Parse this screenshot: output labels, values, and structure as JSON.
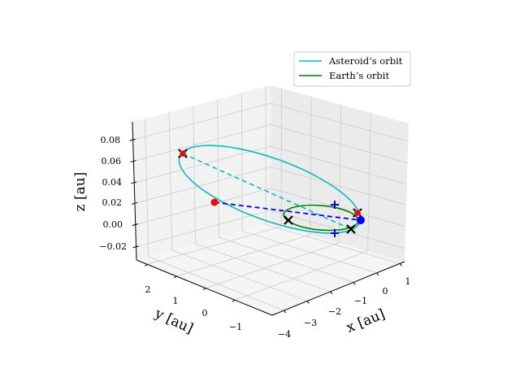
{
  "chart_data": {
    "type": "line3d",
    "xlabel": "x [au]",
    "ylabel": "y [au]",
    "zlabel": "z [au]",
    "x_ticks": [
      "−4",
      "−3",
      "−2",
      "−1",
      "0",
      "1"
    ],
    "y_ticks": [
      "2",
      "1",
      "0",
      "−1"
    ],
    "z_ticks": [
      "0.08",
      "0.06",
      "0.04",
      "0.02",
      "0.00",
      "−0.02"
    ],
    "xlim": [
      -4,
      1.2
    ],
    "ylim": [
      -1.5,
      2.6
    ],
    "zlim": [
      -0.03,
      0.09
    ],
    "legend": {
      "placement": "top-right",
      "entries": [
        "Asteroid’s orbit",
        "Earth’s orbit"
      ]
    },
    "series": [
      {
        "name": "Asteroid’s orbit",
        "color": "#00bfbf",
        "style": "solid",
        "kind": "ellipse",
        "z_range": [
          -0.01,
          0.08
        ]
      },
      {
        "name": "Earth’s orbit",
        "color": "#008000",
        "style": "solid",
        "kind": "circle",
        "radius_au": 1,
        "z": 0
      }
    ],
    "markers": {
      "black_x": 4,
      "red_star": 2,
      "red_dot": 1,
      "blue_dot": 1,
      "blue_plus": 2,
      "lines": [
        {
          "color": "#00bfbf",
          "style": "dashed"
        },
        {
          "color": "#0000ff",
          "style": "dashed"
        }
      ]
    }
  }
}
